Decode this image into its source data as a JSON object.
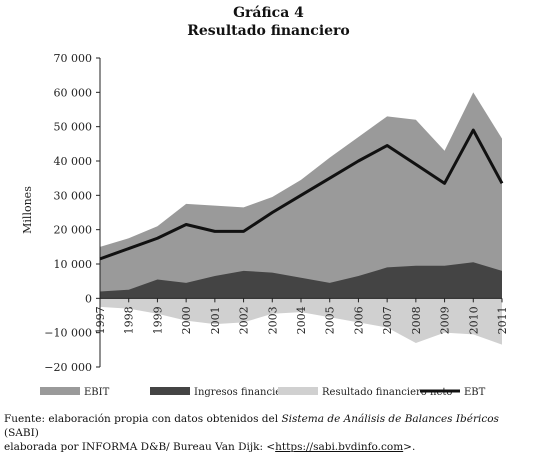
{
  "title": "Gráfica 4",
  "subtitle": "Resultado financiero",
  "chart_data": {
    "type": "area",
    "title": "Gráfica 4",
    "subtitle": "Resultado financiero",
    "ylabel": "Millones",
    "xlabel": "",
    "ylim": [
      -20000,
      70000
    ],
    "yticks": [
      -20000,
      -10000,
      0,
      10000,
      20000,
      30000,
      40000,
      50000,
      60000,
      70000
    ],
    "ytick_labels": [
      "−20 000",
      "−10 000",
      "0",
      "10 000",
      "20 000",
      "30 000",
      "40 000",
      "50 000",
      "60 000",
      "70 000"
    ],
    "categories": [
      "1997",
      "1998",
      "1999",
      "2000",
      "2001",
      "2002",
      "2003",
      "2004",
      "2005",
      "2006",
      "2007",
      "2008",
      "2009",
      "2010",
      "2011"
    ],
    "legend_position": "bottom",
    "series": [
      {
        "name": "EBIT",
        "kind": "area",
        "color": "#9a9a9a",
        "values": [
          15000,
          17500,
          21000,
          27500,
          27000,
          26500,
          29500,
          34500,
          41000,
          47000,
          53000,
          52000,
          43000,
          60000,
          46500
        ]
      },
      {
        "name": "Ingresos financieros",
        "kind": "area",
        "color": "#444444",
        "values": [
          2000,
          2500,
          5500,
          4500,
          6500,
          8000,
          7500,
          6000,
          4500,
          6500,
          9000,
          9500,
          9500,
          10500,
          8000
        ]
      },
      {
        "name": "Resultado financiero neto",
        "kind": "area",
        "color": "#d0d0d0",
        "values": [
          -2500,
          -3000,
          -4500,
          -6500,
          -7500,
          -7000,
          -4500,
          -4000,
          -5500,
          -7000,
          -8500,
          -13000,
          -10000,
          -10500,
          -13500
        ]
      },
      {
        "name": "EBT",
        "kind": "line",
        "color": "#111111",
        "values": [
          11500,
          14500,
          17500,
          21500,
          19500,
          19500,
          25000,
          30000,
          35000,
          40000,
          44500,
          39000,
          33500,
          49000,
          33500
        ]
      }
    ]
  },
  "source": {
    "prefix": "Fuente: elaboración propia con datos obtenidos del ",
    "italic": "Sistema de Análisis de Balances Ibéricos",
    "acronym": " (SABI)",
    "line2": "elaborada por INFORMA D&B/ Bureau Van Dijk: <",
    "link": "https://sabi.bvdinfo.com",
    "suffix": ">."
  }
}
